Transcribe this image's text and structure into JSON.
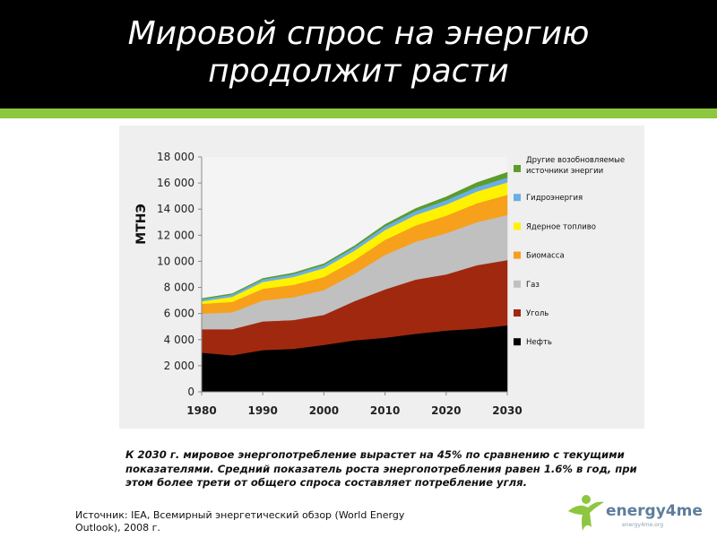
{
  "slide": {
    "title_line1": "Мировой спрос на энергию",
    "title_line2": "продолжит расти",
    "caption": "К 2030 г. мировое энергопотребление вырастет на 45% по сравнению с текущими показателями. Средний показатель роста энергопотребления равен 1.6% в год, при этом более трети от общего спроса составляет потребление угля.",
    "source": "Источник: IEA, Всемирный энергетический обзор (World Energy Outlook), 2008 г.",
    "logo_text": "energy4me",
    "logo_subtext": "energy4me.org"
  },
  "colors": {
    "header_bg": "#000000",
    "accent_green": "#8dc63f",
    "chart_bg": "#efefef"
  },
  "chart_data": {
    "type": "area",
    "stacked": true,
    "ylabel": "МТНЭ",
    "xlim": [
      1980,
      2030
    ],
    "ylim": [
      0,
      18000
    ],
    "yticks": [
      0,
      2000,
      4000,
      6000,
      8000,
      10000,
      12000,
      14000,
      16000,
      18000
    ],
    "ytick_labels": [
      "0",
      "2 000",
      "4 000",
      "6 000",
      "8 000",
      "10 000",
      "12 000",
      "14 000",
      "16 000",
      "18 000"
    ],
    "xticks": [
      1980,
      1990,
      2000,
      2010,
      2020,
      2030
    ],
    "xtick_labels": [
      "1980",
      "1990",
      "2000",
      "2010",
      "2020",
      "2030"
    ],
    "legend_position": "right",
    "x": [
      1980,
      1985,
      1990,
      1995,
      2000,
      2005,
      2010,
      2015,
      2020,
      2025,
      2030
    ],
    "series": [
      {
        "name": "Нефть",
        "color": "#000000",
        "values": [
          3000,
          2800,
          3200,
          3300,
          3600,
          3950,
          4150,
          4450,
          4700,
          4850,
          5100
        ]
      },
      {
        "name": "Уголь",
        "color": "#a0280f",
        "values": [
          1800,
          2000,
          2200,
          2200,
          2300,
          3000,
          3700,
          4150,
          4300,
          4850,
          5000
        ]
      },
      {
        "name": "Газ",
        "color": "#c0c0c0",
        "values": [
          1200,
          1300,
          1600,
          1750,
          1900,
          2100,
          2650,
          2900,
          3150,
          3300,
          3450
        ]
      },
      {
        "name": "Биомасса",
        "color": "#f7a01c",
        "values": [
          750,
          800,
          900,
          950,
          1000,
          1050,
          1150,
          1250,
          1350,
          1450,
          1550
        ]
      },
      {
        "name": "Ядерное топливо",
        "color": "#fff200",
        "values": [
          190,
          380,
          520,
          600,
          680,
          720,
          750,
          800,
          850,
          900,
          950
        ]
      },
      {
        "name": "Гидроэнергия",
        "color": "#6aaee6",
        "values": [
          160,
          180,
          200,
          230,
          250,
          260,
          280,
          300,
          330,
          350,
          370
        ]
      },
      {
        "name": "Другие возобновляемые источники энергии",
        "color": "#5c9c2a",
        "values": [
          50,
          60,
          70,
          80,
          90,
          110,
          150,
          200,
          260,
          330,
          400
        ]
      }
    ],
    "legend": [
      {
        "label_line1": "Другие возобновляемые",
        "label_line2": "источники энергии",
        "color": "#5c9c2a"
      },
      {
        "label_line1": "Гидроэнергия",
        "label_line2": "",
        "color": "#6aaee6"
      },
      {
        "label_line1": "Ядерное топливо",
        "label_line2": "",
        "color": "#fff200"
      },
      {
        "label_line1": "Биомасса",
        "label_line2": "",
        "color": "#f7a01c"
      },
      {
        "label_line1": "Газ",
        "label_line2": "",
        "color": "#c0c0c0"
      },
      {
        "label_line1": "Уголь",
        "label_line2": "",
        "color": "#a0280f"
      },
      {
        "label_line1": "Нефть",
        "label_line2": "",
        "color": "#000000"
      }
    ]
  }
}
